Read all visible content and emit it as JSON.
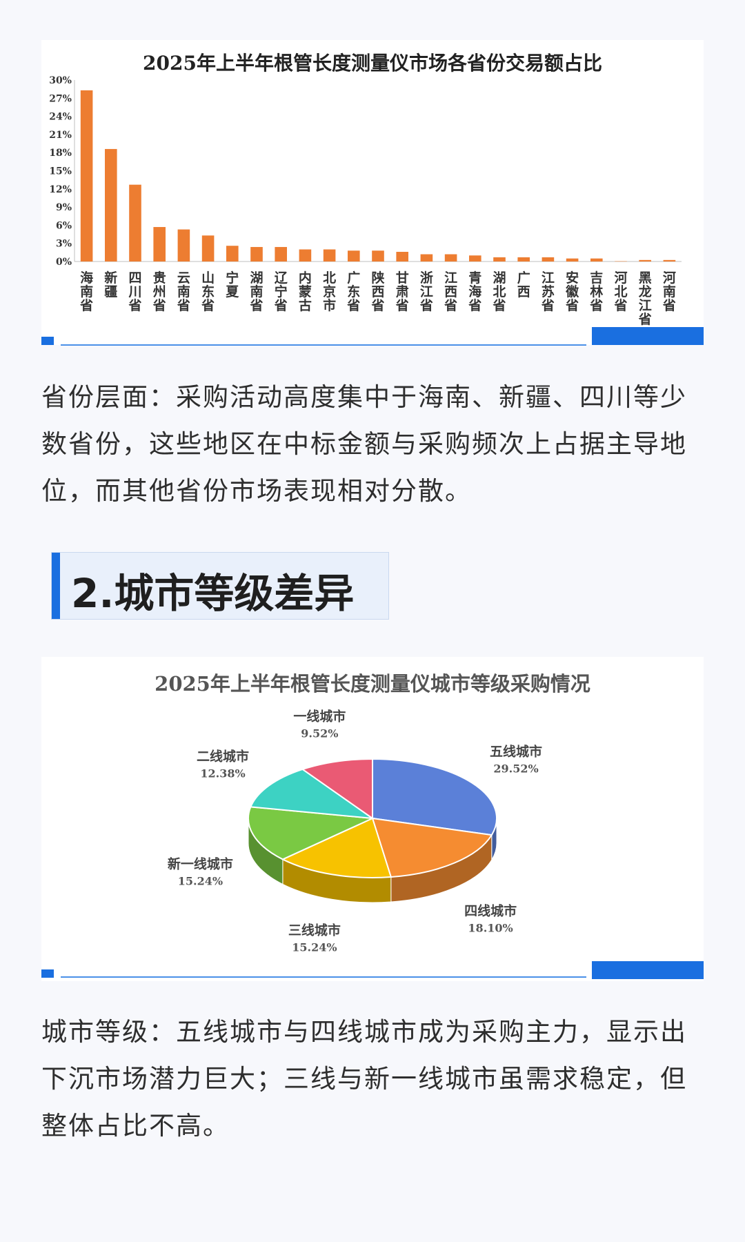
{
  "bar_section": {
    "paragraph": "省份层面：采购活动高度集中于海南、新疆、四川等少数省份，这些地区在中标金额与采购频次上占据主导地位，而其他省份市场表现相对分散。"
  },
  "section_heading": "2.城市等级差异",
  "pie_section": {
    "paragraph": "城市等级：五线城市与四线城市成为采购主力，显示出下沉市场潜力巨大；三线与新一线城市虽需求稳定，但整体占比不高。"
  },
  "colors": {
    "bar": "#ed7d31",
    "accent_blue": "#1a6fe0",
    "pie": [
      "#5b80d8",
      "#f58c31",
      "#f7c200",
      "#7ac943",
      "#3dd2c3",
      "#ea5a74"
    ]
  },
  "chart_data": [
    {
      "type": "bar",
      "title": "2025年上半年根管长度测量仪市场各省份交易额占比",
      "categories": [
        "海南省",
        "新疆",
        "四川省",
        "贵州省",
        "云南省",
        "山东省",
        "宁夏",
        "湖南省",
        "辽宁省",
        "内蒙古",
        "北京市",
        "广东省",
        "陕西省",
        "甘肃省",
        "浙江省",
        "江西省",
        "青海省",
        "湖北省",
        "广西",
        "江苏省",
        "安徽省",
        "吉林省",
        "河北省",
        "黑龙江省",
        "河南省"
      ],
      "values": [
        28.3,
        18.6,
        12.7,
        5.7,
        5.3,
        4.3,
        2.6,
        2.4,
        2.4,
        2.0,
        2.0,
        1.8,
        1.8,
        1.6,
        1.2,
        1.2,
        1.0,
        0.7,
        0.7,
        0.7,
        0.5,
        0.5,
        0.05,
        0.25,
        0.25
      ],
      "ylim": [
        0,
        30
      ],
      "yticks": [
        "0%",
        "3%",
        "6%",
        "9%",
        "12%",
        "15%",
        "18%",
        "21%",
        "24%",
        "27%",
        "30%"
      ],
      "grid": false,
      "legend": "none"
    },
    {
      "type": "pie",
      "title": "2025年上半年根管长度测量仪城市等级采购情况",
      "slices": [
        {
          "label": "五线城市",
          "value": 29.52,
          "text": "29.52%"
        },
        {
          "label": "四线城市",
          "value": 18.1,
          "text": "18.10%"
        },
        {
          "label": "三线城市",
          "value": 15.24,
          "text": "15.24%"
        },
        {
          "label": "新一线城市",
          "value": 15.24,
          "text": "15.24%"
        },
        {
          "label": "二线城市",
          "value": 12.38,
          "text": "12.38%"
        },
        {
          "label": "一线城市",
          "value": 9.52,
          "text": "9.52%"
        }
      ],
      "style": "3d",
      "legend": "none"
    }
  ]
}
